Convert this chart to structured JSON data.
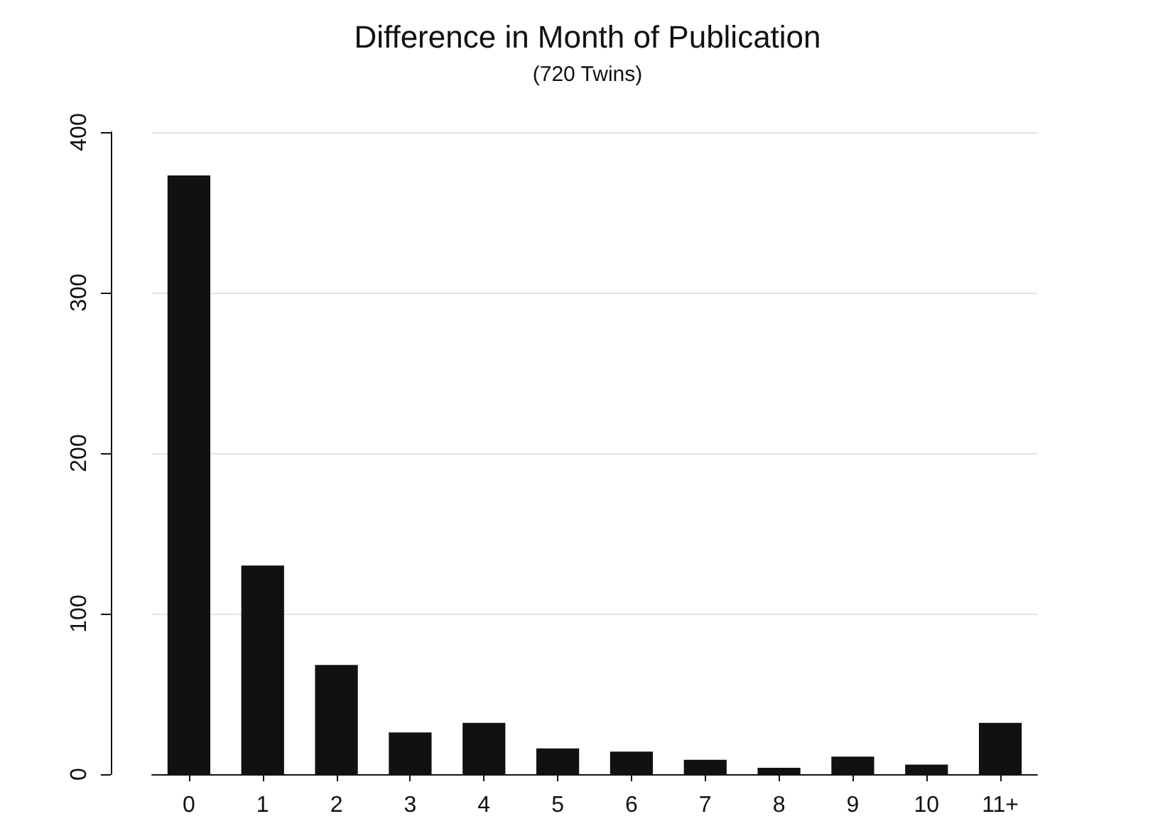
{
  "chart_data": {
    "type": "bar",
    "title": "Difference in Month of Publication",
    "subtitle": "(720 Twins)",
    "categories": [
      "0",
      "1",
      "2",
      "3",
      "4",
      "5",
      "6",
      "7",
      "8",
      "9",
      "10",
      "11+"
    ],
    "values": [
      373,
      130,
      68,
      26,
      32,
      16,
      14,
      9,
      4,
      11,
      6,
      32
    ],
    "color": "#111111",
    "ylim": [
      0,
      400
    ],
    "yticks": [
      0,
      100,
      200,
      300,
      400
    ],
    "grid": "y"
  }
}
